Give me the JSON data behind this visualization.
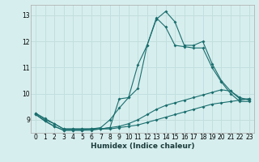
{
  "xlabel": "Humidex (Indice chaleur)",
  "bg_color": "#d7eeee",
  "grid_color": "#c2dede",
  "line_color": "#1a6e6e",
  "xlim": [
    -0.5,
    23.5
  ],
  "ylim": [
    8.5,
    13.4
  ],
  "yticks": [
    9,
    10,
    11,
    12,
    13
  ],
  "xticks": [
    0,
    1,
    2,
    3,
    4,
    5,
    6,
    7,
    8,
    9,
    10,
    11,
    12,
    13,
    14,
    15,
    16,
    17,
    18,
    19,
    20,
    21,
    22,
    23
  ],
  "series": [
    {
      "x": [
        0,
        1,
        2,
        3,
        4,
        5,
        6,
        7,
        8,
        9,
        10,
        11,
        12,
        13,
        14,
        15,
        16,
        17,
        18,
        19,
        20,
        21,
        22,
        23
      ],
      "y": [
        9.25,
        9.05,
        8.85,
        8.65,
        8.65,
        8.65,
        8.65,
        8.65,
        8.7,
        9.8,
        9.85,
        11.1,
        11.85,
        12.85,
        13.15,
        12.75,
        11.85,
        11.85,
        12.0,
        11.15,
        10.5,
        10.1,
        9.8,
        9.8
      ]
    },
    {
      "x": [
        0,
        1,
        2,
        3,
        4,
        5,
        6,
        7,
        8,
        9,
        10,
        11,
        12,
        13,
        14,
        15,
        16,
        17,
        18,
        19,
        20,
        21,
        22,
        23
      ],
      "y": [
        9.25,
        9.0,
        8.85,
        8.65,
        8.65,
        8.65,
        8.65,
        8.7,
        9.0,
        9.45,
        9.85,
        10.2,
        11.85,
        12.9,
        12.55,
        11.85,
        11.8,
        11.75,
        11.75,
        11.0,
        10.45,
        10.0,
        9.7,
        9.7
      ]
    },
    {
      "x": [
        0,
        1,
        2,
        3,
        4,
        5,
        6,
        7,
        8,
        9,
        10,
        11,
        12,
        13,
        14,
        15,
        16,
        17,
        18,
        19,
        20,
        21,
        22,
        23
      ],
      "y": [
        9.2,
        8.95,
        8.75,
        8.6,
        8.6,
        8.6,
        8.65,
        8.65,
        8.7,
        8.75,
        8.85,
        9.0,
        9.2,
        9.4,
        9.55,
        9.65,
        9.75,
        9.85,
        9.95,
        10.05,
        10.15,
        10.1,
        9.85,
        9.75
      ]
    },
    {
      "x": [
        0,
        1,
        2,
        3,
        4,
        5,
        6,
        7,
        8,
        9,
        10,
        11,
        12,
        13,
        14,
        15,
        16,
        17,
        18,
        19,
        20,
        21,
        22,
        23
      ],
      "y": [
        9.2,
        8.95,
        8.75,
        8.6,
        8.6,
        8.6,
        8.6,
        8.65,
        8.65,
        8.7,
        8.75,
        8.8,
        8.9,
        9.0,
        9.1,
        9.2,
        9.3,
        9.4,
        9.5,
        9.6,
        9.65,
        9.7,
        9.75,
        9.8
      ]
    }
  ]
}
